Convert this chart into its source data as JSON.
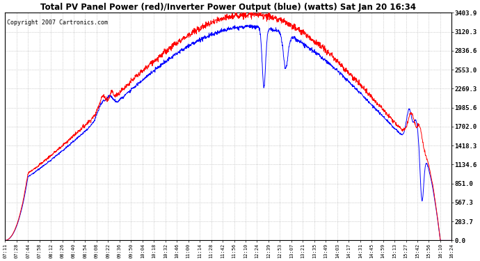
{
  "title": "Total PV Panel Power (red)/Inverter Power Output (blue) (watts) Sat Jan 20 16:34",
  "copyright": "Copyright 2007 Cartronics.com",
  "ylabel_values": [
    0.0,
    283.7,
    567.3,
    851.0,
    1134.6,
    1418.3,
    1702.0,
    1985.6,
    2269.3,
    2553.0,
    2836.6,
    3120.3,
    3403.9
  ],
  "ymax": 3403.9,
  "ymin": 0.0,
  "bg_color": "#ffffff",
  "grid_color": "#aaaaaa",
  "pv_color": "red",
  "inv_color": "blue",
  "x_labels": [
    "07:11",
    "07:28",
    "07:44",
    "07:58",
    "08:12",
    "08:26",
    "08:40",
    "08:54",
    "09:08",
    "09:22",
    "09:36",
    "09:50",
    "10:04",
    "10:18",
    "10:32",
    "10:46",
    "11:00",
    "11:14",
    "11:28",
    "11:42",
    "11:56",
    "12:10",
    "12:24",
    "12:39",
    "12:53",
    "13:07",
    "13:21",
    "13:35",
    "13:49",
    "14:03",
    "14:17",
    "14:31",
    "14:45",
    "14:59",
    "15:13",
    "15:27",
    "15:42",
    "15:56",
    "16:10",
    "16:24"
  ],
  "peak_pv": 3380,
  "peak_inv": 3200,
  "peak_index": 21.5,
  "n_labels": 40
}
